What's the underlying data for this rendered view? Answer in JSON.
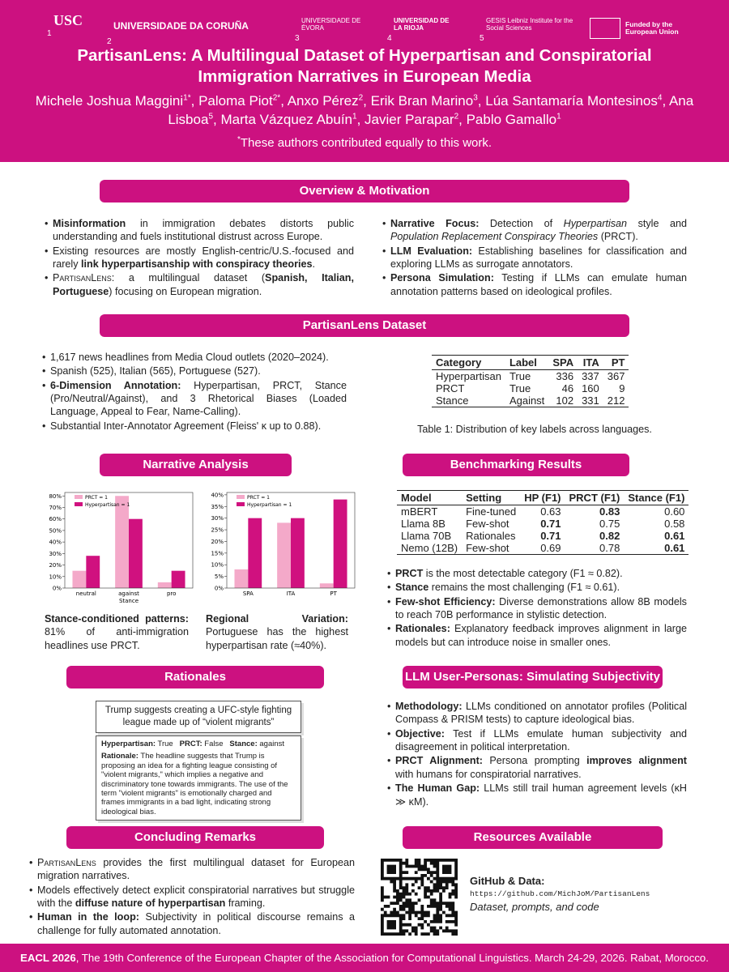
{
  "logos": [
    {
      "number": "1",
      "name": "USC"
    },
    {
      "number": "2",
      "name": "UNIVERSIDADE DA CORUÑA"
    },
    {
      "number": "3",
      "name": "UNIVERSIDADE DE ÉVORA"
    },
    {
      "number": "4",
      "name": "UNIVERSIDAD DE LA RIOJA"
    },
    {
      "number": "5",
      "name": "GESIS Leibniz Institute for the Social Sciences"
    },
    {
      "name": "Funded by the European Union"
    }
  ],
  "header": {
    "title": "PartisanLens: A Multilingual Dataset of Hyperpartisan and Conspiratorial Immigration Narratives in European Media",
    "authors": [
      {
        "name": "Michele Joshua Maggini",
        "sup": "1*"
      },
      {
        "name": "Paloma Piot",
        "sup": "2*"
      },
      {
        "name": "Anxo Pérez",
        "sup": "2"
      },
      {
        "name": "Erik Bran Marino",
        "sup": "3"
      },
      {
        "name": "Lúa Santamaría Montesinos",
        "sup": "4"
      },
      {
        "name": "Ana Lisboa",
        "sup": "5"
      },
      {
        "name": "Marta Vázquez Abuín",
        "sup": "1"
      },
      {
        "name": "Javier Parapar",
        "sup": "2"
      },
      {
        "name": "Pablo Gamallo",
        "sup": "1"
      }
    ],
    "note_mark": "*",
    "note": "These authors contributed equally to this work."
  },
  "overview": {
    "heading": "Overview & Motivation",
    "left": [
      [
        "Misinformation",
        " in immigration debates distorts public understanding and fuels institutional distrust across Europe."
      ],
      [
        "Existing resources are mostly English-centric/U.S.-focused and rarely ",
        "link hyperpartisanship with conspiracy theories",
        "."
      ],
      [
        "PartisanLens",
        ": a multilingual dataset (",
        "Spanish, Italian, Portuguese",
        ") focusing on European migration."
      ]
    ],
    "right": [
      [
        "Narrative Focus:",
        " Detection of ",
        "Hyperpartisan",
        " style and ",
        "Population Replacement Conspiracy Theories",
        " (PRCT)."
      ],
      [
        "LLM Evaluation:",
        " Establishing baselines for classification and exploring LLMs as surrogate annotators."
      ],
      [
        "Persona Simulation:",
        " Testing if LLMs can emulate human annotation patterns based on ideological profiles."
      ]
    ]
  },
  "dataset": {
    "heading": "PartisanLens Dataset",
    "bullets": [
      [
        "1,617 news headlines from Media Cloud outlets (2020–2024)."
      ],
      [
        "Spanish (525), Italian (565), Portuguese (527)."
      ],
      [
        "6-Dimension Annotation:",
        " Hyperpartisan, PRCT, Stance (Pro/Neutral/Against), and 3 Rhetorical Biases (Loaded Language, Appeal to Fear, Name-Calling)."
      ],
      [
        "Substantial Inter-Annotator Agreement (Fleiss' κ up to 0.88)."
      ]
    ],
    "table": {
      "header": [
        "Category",
        "Label",
        "SPA",
        "ITA",
        "PT"
      ],
      "rows": [
        [
          "Hyperpartisan",
          "True",
          "336",
          "337",
          "367"
        ],
        [
          "PRCT",
          "True",
          "46",
          "160",
          "9"
        ],
        [
          "Stance",
          "Against",
          "102",
          "331",
          "212"
        ]
      ],
      "caption": "Table 1: Distribution of key labels across languages."
    }
  },
  "narrative": {
    "heading": "Narrative Analysis",
    "captions": [
      [
        "Stance-conditioned patterns:",
        " 81% of anti-immigration headlines use PRCT."
      ],
      [
        "Regional Variation:",
        " Portuguese has the highest hyperpartisan rate (≈40%)."
      ]
    ]
  },
  "chart_data": [
    {
      "type": "bar",
      "categories": [
        "neutral",
        "against",
        "pro"
      ],
      "xlabel": "Stance",
      "series": [
        {
          "name": "PRCT = 1",
          "color": "#f4a9c9",
          "values": [
            15,
            80,
            5
          ]
        },
        {
          "name": "Hyperpartisan = 1",
          "color": "#d0117f",
          "values": [
            28,
            60,
            15
          ]
        }
      ],
      "ylim": [
        0,
        83
      ],
      "yticks": [
        {
          "value": 0,
          "label": "0%"
        },
        {
          "value": 10,
          "label": "10%"
        },
        {
          "value": 20,
          "label": "20%"
        },
        {
          "value": 30,
          "label": "30%"
        },
        {
          "value": 40,
          "label": "40%"
        },
        {
          "value": 50,
          "label": "50%"
        },
        {
          "value": 60,
          "label": "60%"
        },
        {
          "value": 70,
          "label": "70%"
        },
        {
          "value": 80,
          "label": "80%"
        }
      ]
    },
    {
      "type": "bar",
      "categories": [
        "SPA",
        "ITA",
        "PT"
      ],
      "series": [
        {
          "name": "PRCT = 1",
          "color": "#f4a9c9",
          "values": [
            8,
            28,
            2
          ]
        },
        {
          "name": "Hyperpartisan = 1",
          "color": "#d0117f",
          "values": [
            30,
            30,
            38
          ]
        }
      ],
      "ylim": [
        0,
        41
      ],
      "yticks": [
        {
          "value": 0,
          "label": "0%"
        },
        {
          "value": 5,
          "label": "5%"
        },
        {
          "value": 10,
          "label": "10%"
        },
        {
          "value": 15,
          "label": "15%"
        },
        {
          "value": 20,
          "label": "20%"
        },
        {
          "value": 25,
          "label": "25%"
        },
        {
          "value": 30,
          "label": "30%"
        },
        {
          "value": 35,
          "label": "35%"
        },
        {
          "value": 40,
          "label": "40%"
        }
      ]
    }
  ],
  "benchmark": {
    "heading": "Benchmarking Results",
    "table": {
      "header": [
        "Model",
        "Setting",
        "HP (F1)",
        "PRCT (F1)",
        "Stance (F1)"
      ],
      "rows": [
        [
          "mBERT",
          "Fine-tuned",
          "0.63",
          "0.83",
          "0.60"
        ],
        [
          "Llama 8B",
          "Few-shot",
          "0.71",
          "0.75",
          "0.58"
        ],
        [
          "Llama 70B",
          "Rationales",
          "0.71",
          "0.82",
          "0.61"
        ],
        [
          "Nemo (12B)",
          "Few-shot",
          "0.69",
          "0.78",
          "0.61"
        ]
      ]
    },
    "bullets": [
      [
        "PRCT",
        " is the most detectable category (F1 ≈ 0.82)."
      ],
      [
        "Stance",
        " remains the most challenging (F1 ≈ 0.61)."
      ],
      [
        "Few-shot Efficiency:",
        " Diverse demonstrations allow 8B models to reach 70B performance in stylistic detection."
      ],
      [
        "Rationales:",
        " Explanatory feedback improves alignment in large models but can introduce noise in smaller ones."
      ]
    ]
  },
  "rationales": {
    "heading": "Rationales",
    "headline": "Trump suggests creating a UFC-style fighting league made up of “violent migrants”",
    "labels": [
      [
        "Hyperpartisan:",
        "True"
      ],
      [
        "PRCT:",
        "False"
      ],
      [
        "Stance:",
        "against"
      ]
    ],
    "rationale_label": "Rationale:",
    "rationale": "The headline suggests that Trump is proposing an idea for a fighting league consisting of \"violent migrants,\" which implies a negative and discriminatory tone towards immigrants. The use of the term \"violent migrants\" is emotionally charged and frames immigrants in a bad light, indicating strong ideological bias."
  },
  "personas": {
    "heading": "LLM User-Personas: Simulating Subjectivity",
    "bullets": [
      [
        "Methodology:",
        " LLMs conditioned on annotator profiles (Political Compass & PRISM tests) to capture ideological bias."
      ],
      [
        "Objective:",
        " Test if LLMs emulate human subjectivity and disagreement in political interpretation."
      ],
      [
        "PRCT Alignment:",
        " Persona prompting ",
        "improves alignment",
        " with humans for conspiratorial narratives."
      ],
      [
        "The Human Gap:",
        " LLMs still trail human agreement levels (κH ≫ κM)."
      ]
    ]
  },
  "conclusions": {
    "heading": "Concluding Remarks",
    "bullets": [
      [
        "PartisanLens",
        " provides the first multilingual dataset for European migration narratives."
      ],
      [
        "Models effectively detect explicit conspiratorial narratives but struggle with the ",
        "diffuse nature of hyperpartisan",
        " framing."
      ],
      [
        "Human in the loop:",
        " Subjectivity in political discourse remains a challenge for fully automated annotation."
      ]
    ]
  },
  "resources": {
    "heading": "Resources Available",
    "label": "GitHub & Data:",
    "url": "https://github.com/MichJoM/PartisanLens",
    "note": "Dataset, prompts, and code"
  },
  "footer": [
    "EACL 2026",
    ", The 19th Conference of the European Chapter of the Association for Computational Linguistics. March 24-29, 2026. Rabat, Morocco."
  ]
}
